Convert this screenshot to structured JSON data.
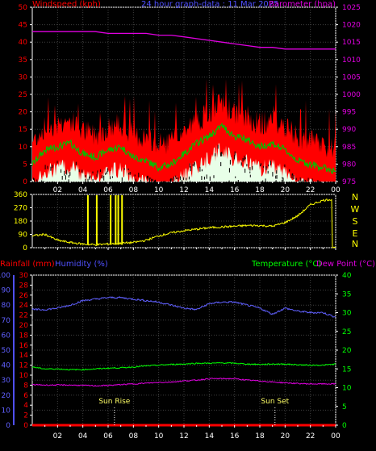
{
  "title": "24 hour graph-data : 11 Mar 2025",
  "colors": {
    "background": "#000000",
    "wind": "#ff0000",
    "wind_avg": "#00c000",
    "gust_fill": "#ffffff",
    "barometer": "#e000e0",
    "direction": "#ffff00",
    "rain": "#ff0000",
    "humidity": "#6060ff",
    "temperature": "#00ff00",
    "dewpoint": "#e000e0",
    "axis_blue": "#5050ff",
    "tick_green": "#00ff00"
  },
  "x_tick_labels": [
    "02",
    "04",
    "06",
    "08",
    "10",
    "12",
    "14",
    "16",
    "18",
    "20",
    "22",
    "00"
  ],
  "panel1": {
    "left_label": "Windspeed (kph)",
    "right_label": "Barometer (hpa)",
    "left_ticks": [
      "0",
      "5",
      "10",
      "15",
      "20",
      "25",
      "30",
      "35",
      "40",
      "45",
      "50"
    ],
    "right_ticks": [
      "975",
      "980",
      "985",
      "990",
      "995",
      "1000",
      "1005",
      "1010",
      "1015",
      "1020",
      "1025"
    ]
  },
  "panel2": {
    "left_ticks": [
      "0",
      "90",
      "180",
      "270",
      "360"
    ],
    "compass_letters": [
      "N",
      "W",
      "S",
      "E",
      "N"
    ]
  },
  "panel3": {
    "rain_label": "Rainfall (mm)",
    "humidity_label": "Humidity (%)",
    "temp_label": "Temperature (°C)",
    "dew_label": "Dew Point (°C)",
    "humidity_ticks": [
      "0",
      "10",
      "20",
      "30",
      "40",
      "50",
      "60",
      "70",
      "80",
      "90",
      "100"
    ],
    "rain_ticks": [
      "0",
      "2",
      "4",
      "6",
      "8",
      "10",
      "12",
      "14",
      "16",
      "18",
      "20",
      "22",
      "24",
      "26",
      "28",
      "30"
    ],
    "temp_ticks": [
      "0",
      "5",
      "10",
      "15",
      "20",
      "25",
      "30",
      "35",
      "40"
    ],
    "sunrise_label": "Sun Rise",
    "sunset_label": "Sun Set"
  },
  "chart_data": [
    {
      "type": "line",
      "title": "24 hour graph-data : 11 Mar 2025",
      "x_hours": [
        0,
        1,
        2,
        3,
        4,
        5,
        6,
        7,
        8,
        9,
        10,
        11,
        12,
        13,
        14,
        15,
        16,
        17,
        18,
        19,
        20,
        21,
        22,
        23,
        24
      ],
      "ylabel": "Windspeed (kph)",
      "y2label": "Barometer (hpa)",
      "ylim": [
        0,
        50
      ],
      "y2lim": [
        975,
        1025
      ],
      "series": [
        {
          "name": "Windspeed (kph)",
          "axis": "left",
          "values": [
            5,
            9,
            10,
            11,
            8,
            7,
            9,
            10,
            7,
            6,
            4,
            5,
            8,
            11,
            13,
            16,
            13,
            12,
            10,
            11,
            9,
            6,
            5,
            4,
            3
          ]
        },
        {
          "name": "Barometer (hpa)",
          "axis": "right",
          "values": [
            1018,
            1018,
            1018,
            1018,
            1018,
            1018,
            1017.5,
            1017.5,
            1017.5,
            1017.5,
            1017,
            1017,
            1016.5,
            1016,
            1015.5,
            1015,
            1014.5,
            1014,
            1013.5,
            1013.5,
            1013,
            1013,
            1013,
            1013,
            1013
          ]
        }
      ]
    },
    {
      "type": "line",
      "x_hours": [
        0,
        1,
        2,
        3,
        4,
        5,
        6,
        7,
        8,
        9,
        10,
        11,
        12,
        13,
        14,
        15,
        16,
        17,
        18,
        19,
        20,
        21,
        22,
        23,
        24
      ],
      "ylim": [
        0,
        360
      ],
      "series": [
        {
          "name": "Wind direction",
          "values": [
            80,
            90,
            50,
            35,
            25,
            20,
            25,
            30,
            35,
            50,
            80,
            100,
            115,
            125,
            135,
            140,
            145,
            150,
            150,
            145,
            170,
            215,
            290,
            320,
            0
          ]
        }
      ]
    },
    {
      "type": "line",
      "x_hours": [
        0,
        1,
        2,
        3,
        4,
        5,
        6,
        7,
        8,
        9,
        10,
        11,
        12,
        13,
        14,
        15,
        16,
        17,
        18,
        19,
        20,
        21,
        22,
        23,
        24
      ],
      "ylim": [
        0,
        100
      ],
      "ylabel": "Humidity (%)",
      "y2label": "Temperature (°C)",
      "y2lim": [
        0,
        40
      ],
      "series": [
        {
          "name": "Humidity (%)",
          "axis": "humidity",
          "values": [
            77,
            77,
            78,
            80,
            83,
            84,
            85,
            85,
            84,
            83,
            82,
            80,
            78,
            77,
            81,
            82,
            82,
            80,
            78,
            74,
            78,
            76,
            75,
            75,
            72
          ]
        },
        {
          "name": "Temperature (°C)",
          "axis": "temperature",
          "values": [
            15.5,
            15,
            15,
            14.8,
            14.8,
            15,
            15.2,
            15.3,
            15.5,
            15.8,
            16,
            16.2,
            16.3,
            16.5,
            16.5,
            16.6,
            16.5,
            16.3,
            16.2,
            16.3,
            16.3,
            16.1,
            16,
            16,
            16.3
          ]
        },
        {
          "name": "Dew Point (°C)",
          "axis": "temperature",
          "values": [
            10.8,
            10.7,
            10.7,
            10.7,
            10.6,
            10.5,
            10.6,
            10.8,
            11,
            11.2,
            11.4,
            11.5,
            11.8,
            12,
            12.4,
            12.4,
            12.4,
            12,
            11.8,
            11.5,
            11.3,
            11.1,
            11,
            11,
            11
          ]
        },
        {
          "name": "Rainfall (mm)",
          "axis": "rain",
          "values": [
            0,
            0,
            0,
            0,
            0,
            0,
            0,
            0,
            0,
            0,
            0,
            0,
            0,
            0,
            0,
            0,
            0,
            0,
            0,
            0,
            0,
            0,
            0,
            0,
            0
          ]
        }
      ],
      "annotations": [
        {
          "label": "Sun Rise",
          "hour": 6.5
        },
        {
          "label": "Sun Set",
          "hour": 19.2
        }
      ]
    }
  ]
}
